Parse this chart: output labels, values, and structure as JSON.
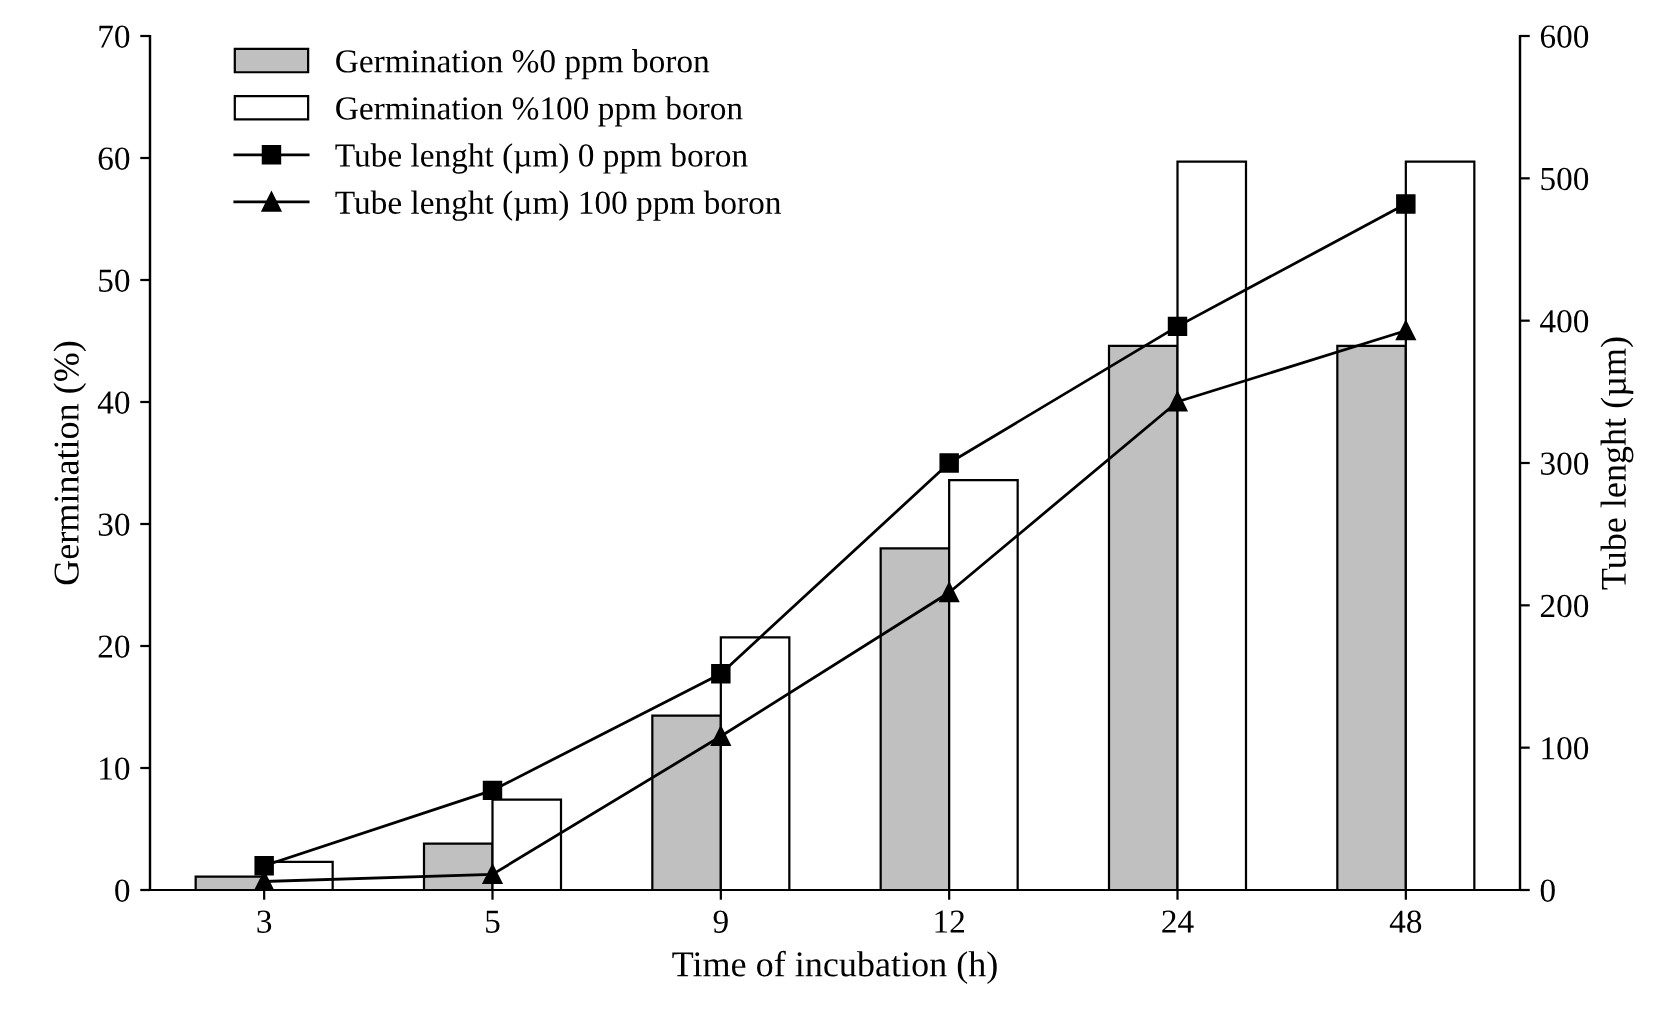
{
  "chart_data": {
    "type": "bar",
    "xlabel": "Time of incubation (h)",
    "ylabel": "Germination (%)",
    "y2label": "Tube lenght (µm)",
    "categories": [
      "3",
      "5",
      "9",
      "12",
      "24",
      "48"
    ],
    "series": [
      {
        "name": "Germination %0 ppm boron",
        "color": "#c0c0c0",
        "values": [
          1.1,
          3.8,
          14.3,
          28,
          44.6,
          44.6
        ]
      },
      {
        "name": "Germination %100 ppm boron",
        "color": "#ffffff",
        "values": [
          2.3,
          7.4,
          20.7,
          33.6,
          59.7,
          59.7
        ]
      },
      {
        "name": "Tube lenght (µm) 0 ppm boron",
        "type": "line",
        "axis": "y2",
        "color": "#000000",
        "marker": "square",
        "values": [
          17,
          70,
          152,
          300,
          396,
          482
        ]
      },
      {
        "name": "Tube lenght (µm) 100 ppm boron",
        "type": "line",
        "axis": "y2",
        "color": "#000000",
        "marker": "triangle",
        "values": [
          6,
          11,
          108,
          209,
          343,
          393
        ]
      }
    ],
    "ylim": [
      0,
      70
    ],
    "yticks": [
      0,
      10,
      20,
      30,
      40,
      50,
      60,
      70
    ],
    "y2lim": [
      0,
      600
    ],
    "y2ticks": [
      0,
      100,
      200,
      300,
      400,
      500,
      600
    ],
    "grid": false,
    "legend": "top left",
    "line_style": "solid"
  }
}
